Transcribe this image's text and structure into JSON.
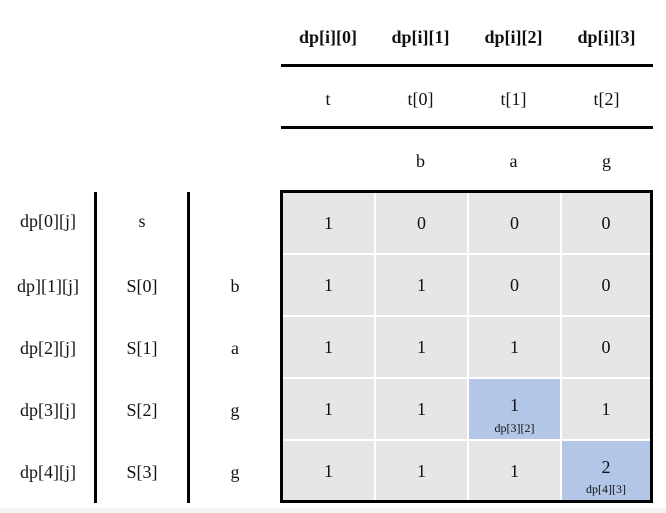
{
  "column_headers": [
    "dp[i][0]",
    "dp[i][1]",
    "dp[i][2]",
    "dp[i][3]"
  ],
  "t_row": [
    "t",
    "t[0]",
    "t[1]",
    "t[2]"
  ],
  "t_chars": [
    "",
    "b",
    "a",
    "g"
  ],
  "rows": [
    {
      "dp": "dp[0][j]",
      "s": "s",
      "ch": "",
      "values": [
        "1",
        "0",
        "0",
        "0"
      ]
    },
    {
      "dp": "dp][1][j]",
      "s": "S[0]",
      "ch": "b",
      "values": [
        "1",
        "1",
        "0",
        "0"
      ]
    },
    {
      "dp": "dp[2][j]",
      "s": "S[1]",
      "ch": "a",
      "values": [
        "1",
        "1",
        "1",
        "0"
      ]
    },
    {
      "dp": "dp[3][j]",
      "s": "S[2]",
      "ch": "g",
      "values": [
        "1",
        "1",
        "1",
        "1"
      ]
    },
    {
      "dp": "dp[4][j]",
      "s": "S[3]",
      "ch": "g",
      "values": [
        "1",
        "1",
        "1",
        "2"
      ]
    }
  ],
  "highlights": [
    {
      "row": 3,
      "col": 2,
      "label": "dp[3][2]"
    },
    {
      "row": 4,
      "col": 3,
      "label": "dp[4][3]"
    }
  ],
  "colors": {
    "cell": "#e6e6e6",
    "highlight": "#b4c6e7",
    "border": "#000000"
  }
}
